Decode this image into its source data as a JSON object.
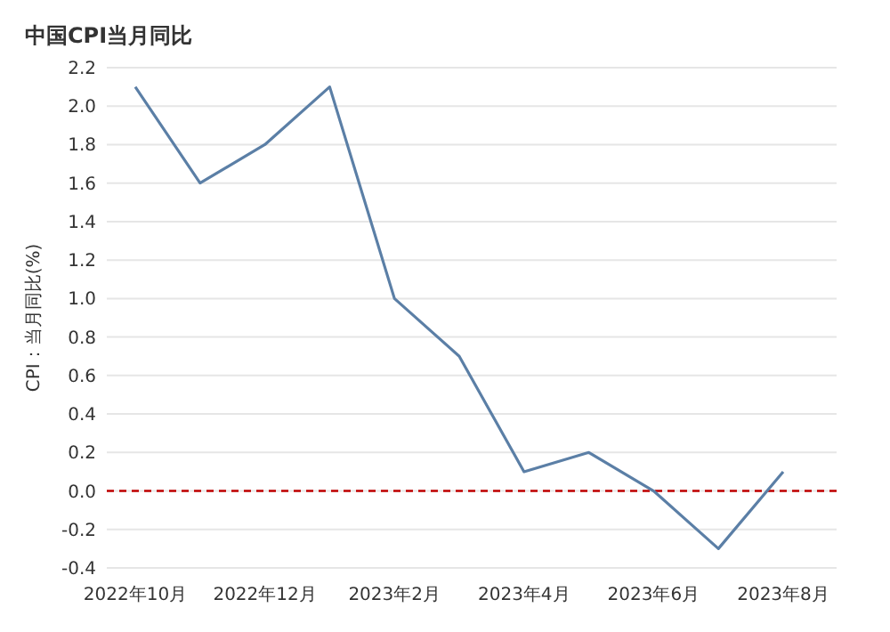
{
  "chart_data": {
    "type": "line",
    "title": "中国CPI当月同比",
    "ylabel": "CPI：当月同比(%)",
    "categories": [
      "2022年10月",
      null,
      "2022年12月",
      null,
      "2023年2月",
      null,
      "2023年4月",
      null,
      "2023年6月",
      null,
      "2023年8月"
    ],
    "series": [
      {
        "color": "#5b7fa6",
        "values": [
          2.1,
          1.6,
          1.8,
          2.1,
          1.0,
          0.7,
          0.1,
          0.2,
          0.0,
          -0.3,
          0.1
        ]
      }
    ],
    "ylim": [
      -0.4,
      2.2
    ],
    "yticks": [
      -0.4,
      -0.2,
      {
        "value": 0,
        "label": "0.0"
      },
      0.2,
      0.4,
      0.6,
      0.8,
      {
        "value": 1,
        "label": "1.0"
      },
      1.2,
      1.4,
      1.6,
      1.8,
      {
        "value": 2,
        "label": "2.0"
      },
      2.2
    ],
    "grid": "y",
    "marker": "none",
    "line_style": "solid",
    "ref_lines": [
      {
        "axis": "y",
        "value": 0,
        "color": "#c00000",
        "line_style": "dashed"
      }
    ]
  }
}
